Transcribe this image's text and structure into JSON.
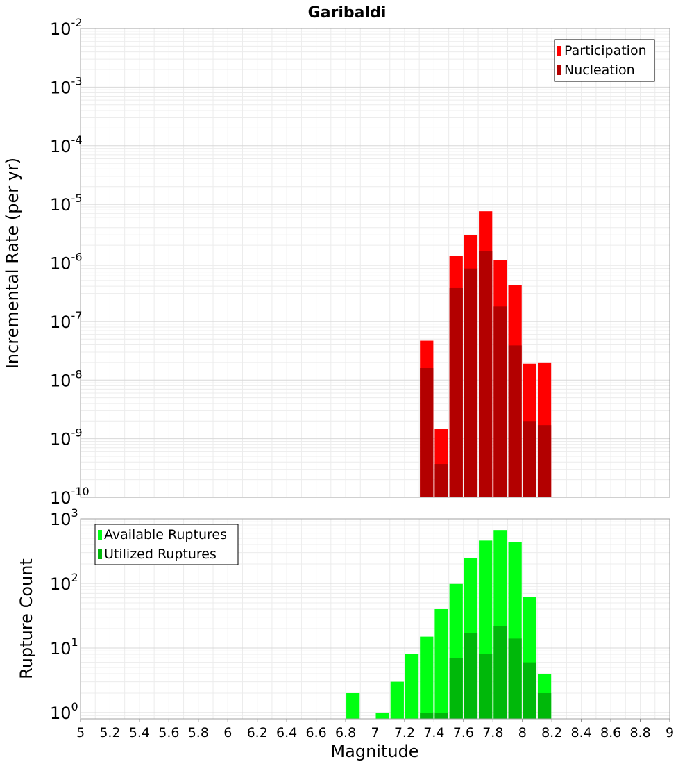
{
  "chart_data": [
    {
      "type": "bar",
      "title": "Garibaldi",
      "ylabel": "Incremental Rate (per yr)",
      "yscale": "log",
      "ylim": [
        1e-10,
        0.01
      ],
      "xlim": [
        5,
        9
      ],
      "grid": true,
      "legend_position": "top-right",
      "bin_width": 0.1,
      "series": [
        {
          "name": "Participation",
          "color": "#ff0000",
          "x": [
            7.35,
            7.45,
            7.55,
            7.65,
            7.75,
            7.85,
            7.95,
            8.05,
            8.15
          ],
          "values": [
            4.7e-08,
            1.45e-09,
            1.3e-06,
            3e-06,
            7.6e-06,
            1.1e-06,
            4.2e-07,
            1.9e-08,
            2e-08
          ]
        },
        {
          "name": "Nucleation",
          "color": "#b30000",
          "x": [
            7.35,
            7.45,
            7.55,
            7.65,
            7.75,
            7.85,
            7.95,
            8.05,
            8.15
          ],
          "values": [
            1.6e-08,
            3.7e-10,
            3.8e-07,
            8e-07,
            1.6e-06,
            1.8e-07,
            3.9e-08,
            2e-09,
            1.7e-09
          ]
        }
      ]
    },
    {
      "type": "bar",
      "xlabel": "Magnitude",
      "ylabel": "Rupture Count",
      "yscale": "log",
      "ylim": [
        0.8,
        1000
      ],
      "xlim": [
        5,
        9
      ],
      "xticks": [
        "5",
        "5.2",
        "5.4",
        "5.6",
        "5.8",
        "6",
        "6.2",
        "6.4",
        "6.6",
        "6.8",
        "7",
        "7.2",
        "7.4",
        "7.6",
        "7.8",
        "8",
        "8.2",
        "8.4",
        "8.6",
        "8.8",
        "9"
      ],
      "grid": true,
      "legend_position": "top-left",
      "bin_width": 0.1,
      "series": [
        {
          "name": "Available Ruptures",
          "color": "#00ff12",
          "x": [
            6.85,
            7.05,
            7.15,
            7.25,
            7.35,
            7.45,
            7.55,
            7.65,
            7.75,
            7.85,
            7.95,
            8.05,
            8.15
          ],
          "values": [
            2,
            1,
            3,
            8,
            15,
            40,
            98,
            250,
            460,
            670,
            440,
            62,
            4
          ]
        },
        {
          "name": "Utilized Ruptures",
          "color": "#00b80a",
          "x": [
            7.35,
            7.45,
            7.55,
            7.65,
            7.75,
            7.85,
            7.95,
            8.05,
            8.15
          ],
          "values": [
            1,
            1,
            7,
            17,
            8,
            22,
            14,
            6,
            2
          ]
        }
      ]
    }
  ]
}
